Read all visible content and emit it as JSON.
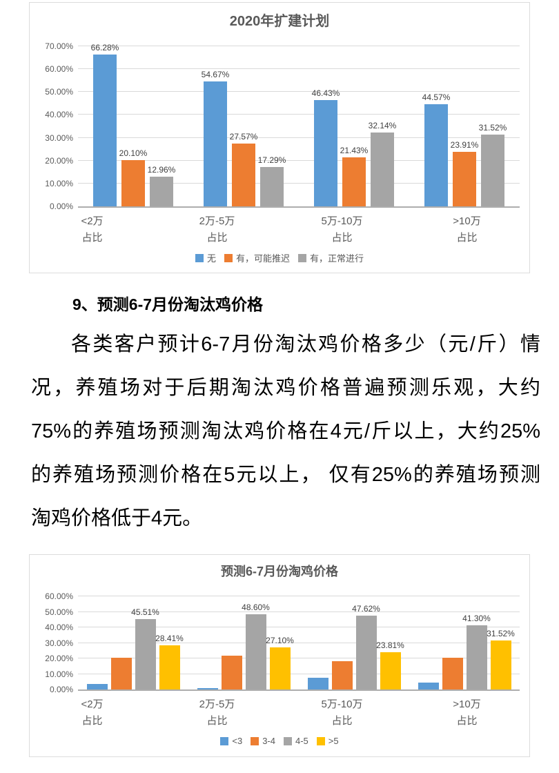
{
  "section": {
    "heading": "9、预测6-7月份淘汰鸡价格",
    "paragraph_lines": [
      "各类客户预计6-7月份淘汰鸡价格多少（元/斤）情",
      "况，养殖场对于后期淘汰鸡价格普遍预测乐观，大约",
      "75%的养殖场预测淘汰鸡价格在4元/斤以上，大约25%",
      "的养殖场预测价格在5元以上， 仅有25%的养殖场预测",
      "淘鸡价格低于4元。"
    ]
  },
  "chart_data": [
    {
      "type": "bar",
      "title": "2020年扩建计划",
      "categories": [
        "<2万",
        "2万-5万",
        "5万-10万",
        ">10万"
      ],
      "category_sublabel": "占比",
      "ylim": [
        0,
        70
      ],
      "ytick_step": 10,
      "grid": true,
      "legend_position": "bottom",
      "series": [
        {
          "name": "无",
          "color": "#5B9BD5",
          "labels_visible": true,
          "values": [
            66.28,
            54.67,
            46.43,
            44.57
          ]
        },
        {
          "name": "有，可能推迟",
          "color": "#ED7D31",
          "labels_visible": true,
          "values": [
            20.1,
            27.57,
            21.43,
            23.91
          ]
        },
        {
          "name": "有，正常进行",
          "color": "#A5A5A5",
          "labels_visible": true,
          "values": [
            12.96,
            17.29,
            32.14,
            31.52
          ]
        }
      ]
    },
    {
      "type": "bar",
      "title": "预测6-7月份淘鸡价格",
      "categories": [
        "<2万",
        "2万-5万",
        "5万-10万",
        ">10万"
      ],
      "category_sublabel": "占比",
      "ylim": [
        0,
        60
      ],
      "ytick_step": 10,
      "grid": true,
      "legend_position": "bottom",
      "series": [
        {
          "name": "<3",
          "color": "#5B9BD5",
          "labels_visible": false,
          "values": [
            3.6,
            0.9,
            7.5,
            4.5
          ]
        },
        {
          "name": "3-4",
          "color": "#ED7D31",
          "labels_visible": false,
          "values": [
            20.5,
            21.9,
            18.3,
            20.5
          ]
        },
        {
          "name": "4-5",
          "color": "#A5A5A5",
          "labels_visible": true,
          "values": [
            45.51,
            48.6,
            47.62,
            41.3
          ]
        },
        {
          "name": ">5",
          "color": "#FFC000",
          "labels_visible": true,
          "values": [
            28.41,
            27.1,
            23.81,
            31.52
          ]
        }
      ]
    }
  ]
}
